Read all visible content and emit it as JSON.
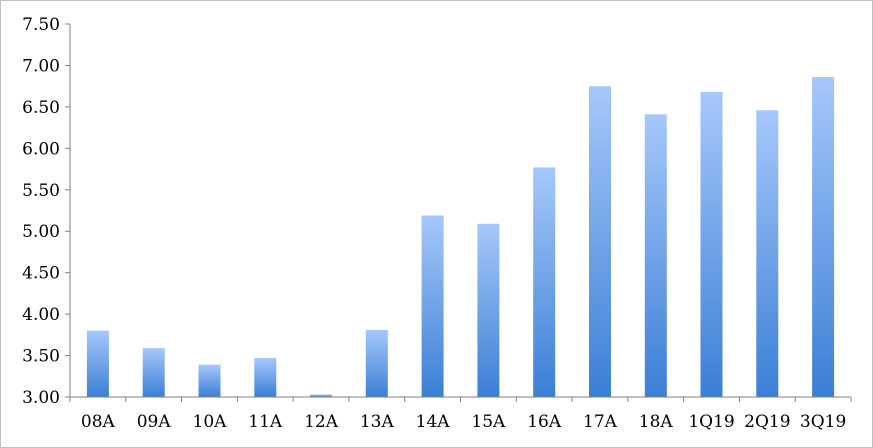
{
  "chart_data": {
    "type": "bar",
    "categories": [
      "08A",
      "09A",
      "10A",
      "11A",
      "12A",
      "13A",
      "14A",
      "15A",
      "16A",
      "17A",
      "18A",
      "1Q19",
      "2Q19",
      "3Q19"
    ],
    "series": [
      {
        "values": [
          3.8,
          3.59,
          3.39,
          3.47,
          3.03,
          3.81,
          5.19,
          5.09,
          5.77,
          6.75,
          6.41,
          6.68,
          6.46,
          6.86
        ]
      }
    ],
    "title": "",
    "xlabel": "",
    "ylabel": "",
    "ylim": [
      3.0,
      7.5
    ],
    "yticks": [
      "3.00",
      "3.50",
      "4.00",
      "4.50",
      "5.00",
      "5.50",
      "6.00",
      "6.50",
      "7.00",
      "7.50"
    ],
    "grid": false,
    "legend": "none",
    "colors": {
      "bar_top": "#a6c8fb",
      "bar_bottom": "#3b7fd6",
      "axis": "#808080"
    }
  }
}
